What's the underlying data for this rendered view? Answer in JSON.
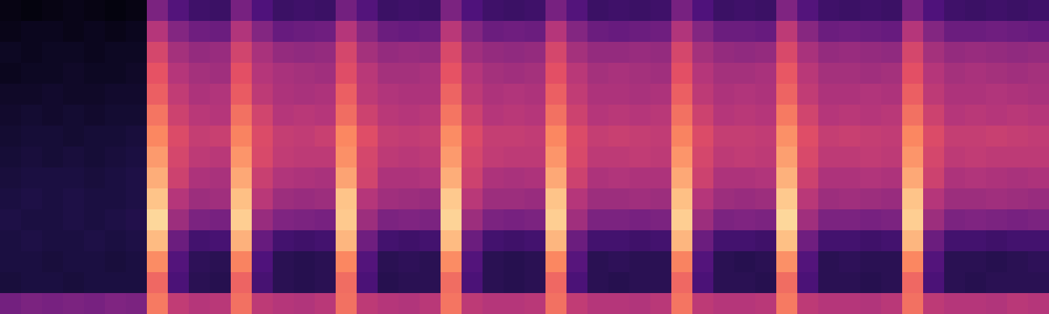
{
  "chart_data": {
    "type": "heatmap",
    "tick_labels": false,
    "color_range": [
      0,
      100
    ],
    "cells": [
      [
        3,
        4,
        6,
        5,
        7,
        8,
        9,
        10,
        11,
        12,
        13,
        12,
        12,
        11,
        34
      ],
      [
        2,
        5,
        5,
        6,
        7,
        9,
        10,
        11,
        12,
        13,
        12,
        13,
        12,
        12,
        36
      ],
      [
        3,
        5,
        6,
        6,
        8,
        8,
        10,
        10,
        12,
        12,
        12,
        12,
        11,
        12,
        35
      ],
      [
        4,
        4,
        6,
        7,
        7,
        9,
        9,
        11,
        12,
        13,
        13,
        12,
        12,
        11,
        36
      ],
      [
        3,
        5,
        5,
        6,
        7,
        8,
        10,
        10,
        11,
        12,
        12,
        13,
        12,
        12,
        35
      ],
      [
        2,
        4,
        6,
        6,
        8,
        9,
        10,
        11,
        12,
        12,
        13,
        12,
        11,
        12,
        37
      ],
      [
        3,
        5,
        6,
        7,
        8,
        9,
        11,
        12,
        13,
        13,
        14,
        13,
        12,
        12,
        36
      ],
      [
        36,
        50,
        58,
        63,
        66,
        71,
        75,
        79,
        83,
        88,
        92,
        86,
        76,
        68,
        72
      ],
      [
        26,
        38,
        46,
        50,
        53,
        56,
        60,
        58,
        56,
        50,
        44,
        32,
        26,
        24,
        53
      ],
      [
        21,
        33,
        42,
        46,
        48,
        51,
        54,
        52,
        48,
        44,
        36,
        22,
        17,
        16,
        50
      ],
      [
        20,
        32,
        43,
        45,
        49,
        50,
        55,
        51,
        47,
        45,
        35,
        23,
        16,
        15,
        51
      ],
      [
        35,
        49,
        57,
        62,
        65,
        70,
        74,
        78,
        82,
        87,
        90,
        84,
        74,
        67,
        70
      ],
      [
        25,
        38,
        47,
        50,
        52,
        57,
        60,
        59,
        55,
        51,
        43,
        31,
        25,
        23,
        52
      ],
      [
        20,
        31,
        42,
        47,
        48,
        50,
        54,
        53,
        49,
        44,
        37,
        22,
        16,
        16,
        50
      ],
      [
        21,
        32,
        41,
        46,
        47,
        51,
        53,
        52,
        48,
        43,
        36,
        21,
        15,
        15,
        49
      ],
      [
        20,
        33,
        42,
        45,
        48,
        50,
        55,
        52,
        47,
        44,
        35,
        22,
        16,
        16,
        51
      ],
      [
        34,
        50,
        58,
        61,
        66,
        69,
        75,
        77,
        81,
        88,
        89,
        85,
        75,
        69,
        70
      ],
      [
        26,
        39,
        46,
        51,
        52,
        56,
        61,
        58,
        57,
        50,
        44,
        33,
        26,
        24,
        52
      ],
      [
        20,
        32,
        42,
        46,
        49,
        51,
        54,
        52,
        48,
        45,
        36,
        22,
        16,
        15,
        50
      ],
      [
        21,
        31,
        43,
        46,
        48,
        50,
        53,
        51,
        48,
        44,
        37,
        21,
        17,
        16,
        49
      ],
      [
        20,
        32,
        42,
        47,
        48,
        51,
        54,
        52,
        49,
        43,
        36,
        22,
        16,
        16,
        51
      ],
      [
        36,
        51,
        59,
        63,
        67,
        71,
        76,
        79,
        83,
        89,
        91,
        86,
        76,
        69,
        71
      ],
      [
        25,
        38,
        45,
        50,
        52,
        56,
        60,
        58,
        56,
        51,
        44,
        32,
        26,
        24,
        52
      ],
      [
        21,
        32,
        42,
        46,
        48,
        50,
        54,
        53,
        48,
        44,
        36,
        22,
        16,
        16,
        50
      ],
      [
        20,
        33,
        41,
        45,
        49,
        51,
        54,
        52,
        47,
        44,
        35,
        21,
        15,
        15,
        50
      ],
      [
        21,
        32,
        42,
        46,
        48,
        50,
        53,
        52,
        48,
        43,
        36,
        22,
        16,
        16,
        51
      ],
      [
        35,
        50,
        58,
        62,
        66,
        70,
        75,
        78,
        82,
        88,
        90,
        85,
        75,
        68,
        70
      ],
      [
        26,
        38,
        46,
        51,
        53,
        56,
        60,
        59,
        56,
        50,
        45,
        32,
        27,
        24,
        53
      ],
      [
        20,
        32,
        42,
        46,
        48,
        50,
        54,
        52,
        48,
        44,
        36,
        22,
        16,
        16,
        50
      ],
      [
        21,
        31,
        42,
        47,
        48,
        51,
        55,
        52,
        49,
        44,
        36,
        22,
        17,
        15,
        50
      ],
      [
        20,
        32,
        43,
        46,
        47,
        50,
        54,
        53,
        48,
        45,
        35,
        21,
        16,
        16,
        49
      ],
      [
        21,
        33,
        42,
        45,
        48,
        51,
        53,
        52,
        48,
        44,
        36,
        22,
        16,
        16,
        51
      ],
      [
        35,
        49,
        58,
        62,
        66,
        70,
        74,
        78,
        82,
        87,
        90,
        85,
        74,
        68,
        71
      ],
      [
        25,
        38,
        46,
        50,
        52,
        56,
        60,
        58,
        56,
        50,
        44,
        32,
        26,
        24,
        52
      ],
      [
        20,
        32,
        42,
        46,
        48,
        50,
        54,
        52,
        48,
        44,
        36,
        22,
        16,
        16,
        50
      ],
      [
        21,
        32,
        41,
        46,
        49,
        51,
        54,
        53,
        48,
        43,
        37,
        22,
        15,
        16,
        50
      ],
      [
        20,
        31,
        42,
        47,
        48,
        50,
        53,
        52,
        49,
        44,
        36,
        21,
        16,
        15,
        51
      ],
      [
        37,
        52,
        59,
        64,
        67,
        72,
        77,
        80,
        84,
        89,
        92,
        87,
        77,
        69,
        72
      ],
      [
        26,
        39,
        47,
        51,
        53,
        57,
        61,
        59,
        56,
        51,
        45,
        33,
        26,
        24,
        52
      ],
      [
        21,
        32,
        42,
        46,
        48,
        50,
        54,
        52,
        48,
        44,
        36,
        22,
        16,
        16,
        50
      ],
      [
        20,
        33,
        43,
        46,
        48,
        51,
        55,
        52,
        48,
        45,
        36,
        22,
        17,
        16,
        50
      ],
      [
        21,
        32,
        42,
        45,
        49,
        50,
        54,
        53,
        49,
        44,
        35,
        21,
        16,
        15,
        49
      ],
      [
        20,
        31,
        41,
        46,
        48,
        51,
        53,
        52,
        48,
        43,
        36,
        22,
        16,
        16,
        51
      ],
      [
        35,
        50,
        58,
        62,
        66,
        70,
        75,
        78,
        82,
        88,
        90,
        85,
        75,
        68,
        70
      ],
      [
        25,
        38,
        46,
        50,
        52,
        56,
        60,
        58,
        56,
        50,
        44,
        32,
        26,
        24,
        52
      ],
      [
        21,
        32,
        42,
        46,
        48,
        50,
        54,
        52,
        48,
        44,
        36,
        22,
        16,
        16,
        50
      ],
      [
        20,
        32,
        43,
        47,
        48,
        51,
        54,
        53,
        49,
        44,
        37,
        22,
        16,
        15,
        50
      ],
      [
        21,
        33,
        42,
        46,
        49,
        50,
        55,
        52,
        48,
        45,
        36,
        21,
        15,
        16,
        49
      ],
      [
        20,
        32,
        41,
        45,
        48,
        51,
        54,
        52,
        47,
        44,
        35,
        22,
        16,
        16,
        51
      ],
      [
        21,
        31,
        42,
        46,
        47,
        50,
        53,
        52,
        48,
        43,
        36,
        22,
        17,
        16,
        50
      ]
    ]
  }
}
